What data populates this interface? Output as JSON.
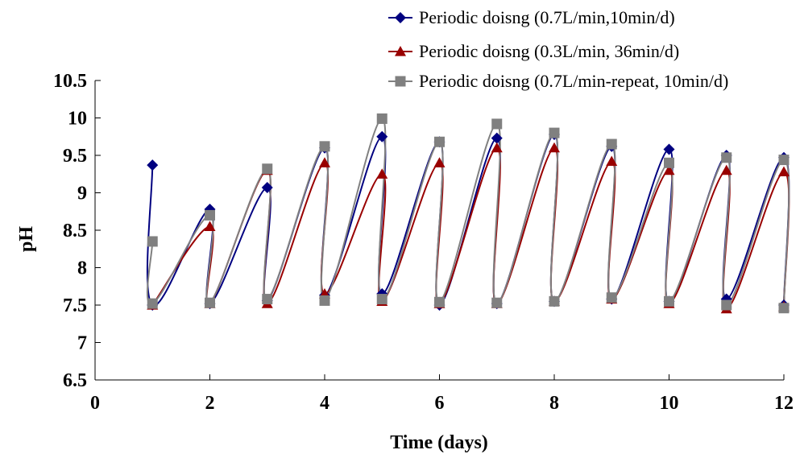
{
  "chart_data": {
    "type": "line",
    "xlabel": "Time (days)",
    "ylabel": "pH",
    "xlim": [
      0,
      12
    ],
    "ylim": [
      6.5,
      10.5
    ],
    "x_ticks": [
      0,
      2,
      4,
      6,
      8,
      10,
      12
    ],
    "y_ticks": [
      6.5,
      7,
      7.5,
      8,
      8.5,
      9,
      9.5,
      10,
      10.5
    ],
    "x_tick_labels": [
      "0",
      "2",
      "4",
      "6",
      "8",
      "10",
      "12"
    ],
    "y_tick_labels": [
      "6.5",
      "7",
      "7.5",
      "8",
      "8.5",
      "9",
      "9.5",
      "10",
      "10.5"
    ],
    "legend_position": "top-right",
    "grid": false,
    "series": [
      {
        "name": "Periodic doisng (0.7L/min,10min/d)",
        "color": "#000080",
        "marker": "diamond",
        "points": [
          [
            1,
            9.37
          ],
          [
            1,
            7.5
          ],
          [
            2,
            8.78
          ],
          [
            2,
            7.52
          ],
          [
            3,
            9.07
          ],
          [
            3,
            7.56
          ],
          [
            4,
            9.6
          ],
          [
            4,
            7.63
          ],
          [
            5,
            9.75
          ],
          [
            5,
            7.65
          ],
          [
            6,
            9.68
          ],
          [
            6,
            7.5
          ],
          [
            7,
            9.73
          ],
          [
            7,
            7.52
          ],
          [
            8,
            9.78
          ],
          [
            8,
            7.55
          ],
          [
            9,
            9.62
          ],
          [
            9,
            7.58
          ],
          [
            10,
            9.58
          ],
          [
            10,
            7.55
          ],
          [
            11,
            9.5
          ],
          [
            11,
            7.58
          ],
          [
            12,
            9.47
          ],
          [
            12,
            7.5
          ]
        ]
      },
      {
        "name": "Periodic doisng (0.3L/min, 36min/d)",
        "color": "#990000",
        "marker": "triangle",
        "points": [
          [
            1,
            7.5
          ],
          [
            2,
            8.55
          ],
          [
            2,
            7.52
          ],
          [
            3,
            9.3
          ],
          [
            3,
            7.52
          ],
          [
            4,
            9.4
          ],
          [
            4,
            7.65
          ],
          [
            5,
            9.25
          ],
          [
            5,
            7.55
          ],
          [
            6,
            9.4
          ],
          [
            6,
            7.52
          ],
          [
            7,
            9.6
          ],
          [
            7,
            7.52
          ],
          [
            8,
            9.6
          ],
          [
            8,
            7.55
          ],
          [
            9,
            9.42
          ],
          [
            9,
            7.58
          ],
          [
            10,
            9.3
          ],
          [
            10,
            7.52
          ],
          [
            11,
            9.3
          ],
          [
            11,
            7.45
          ],
          [
            12,
            9.28
          ],
          [
            12,
            7.48
          ]
        ]
      },
      {
        "name": "Periodic doisng (0.7L/min-repeat, 10min/d)",
        "color": "#808080",
        "marker": "square",
        "points": [
          [
            1,
            8.35
          ],
          [
            1,
            7.52
          ],
          [
            2,
            8.7
          ],
          [
            2,
            7.53
          ],
          [
            3,
            9.32
          ],
          [
            3,
            7.58
          ],
          [
            4,
            9.62
          ],
          [
            4,
            7.56
          ],
          [
            5,
            9.99
          ],
          [
            5,
            7.58
          ],
          [
            6,
            9.68
          ],
          [
            6,
            7.54
          ],
          [
            7,
            9.92
          ],
          [
            7,
            7.53
          ],
          [
            8,
            9.8
          ],
          [
            8,
            7.55
          ],
          [
            9,
            9.65
          ],
          [
            9,
            7.6
          ],
          [
            10,
            9.4
          ],
          [
            10,
            7.55
          ],
          [
            11,
            9.47
          ],
          [
            11,
            7.5
          ],
          [
            12,
            9.44
          ],
          [
            12,
            7.46
          ]
        ]
      }
    ]
  }
}
